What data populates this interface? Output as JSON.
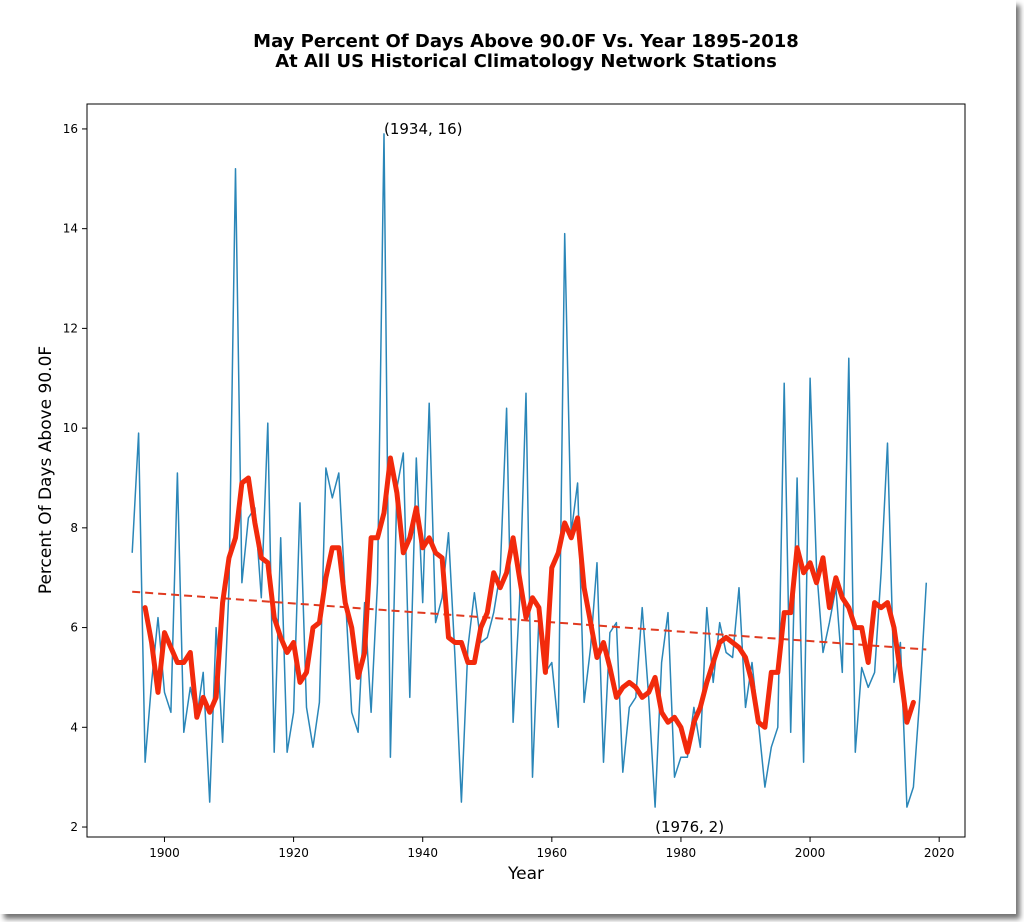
{
  "chart_data": {
    "type": "line",
    "title": "May Percent Of Days Above 90.0F Vs. Year 1895-2018",
    "subtitle": "At All US Historical Climatology Network Stations",
    "xlabel": "Year",
    "ylabel": "Percent Of Days Above 90.0F",
    "xlim": [
      1888,
      2024
    ],
    "ylim": [
      1.8,
      16.5
    ],
    "xticks": [
      1900,
      1920,
      1940,
      1960,
      1980,
      2000,
      2020
    ],
    "yticks": [
      2,
      4,
      6,
      8,
      10,
      12,
      14,
      16
    ],
    "grid": false,
    "colors": {
      "series": "#2a86b8",
      "smooth": "#f22a0c",
      "trend": "#e03a20"
    },
    "series": [
      {
        "style": "thin-line",
        "x": [
          1895,
          1896,
          1897,
          1898,
          1899,
          1900,
          1901,
          1902,
          1903,
          1904,
          1905,
          1906,
          1907,
          1908,
          1909,
          1910,
          1911,
          1912,
          1913,
          1914,
          1915,
          1916,
          1917,
          1918,
          1919,
          1920,
          1921,
          1922,
          1923,
          1924,
          1925,
          1926,
          1927,
          1928,
          1929,
          1930,
          1931,
          1932,
          1933,
          1934,
          1935,
          1936,
          1937,
          1938,
          1939,
          1940,
          1941,
          1942,
          1943,
          1944,
          1945,
          1946,
          1947,
          1948,
          1949,
          1950,
          1951,
          1952,
          1953,
          1954,
          1955,
          1956,
          1957,
          1958,
          1959,
          1960,
          1961,
          1962,
          1963,
          1964,
          1965,
          1966,
          1967,
          1968,
          1969,
          1970,
          1971,
          1972,
          1973,
          1974,
          1975,
          1976,
          1977,
          1978,
          1979,
          1980,
          1981,
          1982,
          1983,
          1984,
          1985,
          1986,
          1987,
          1988,
          1989,
          1990,
          1991,
          1992,
          1993,
          1994,
          1995,
          1996,
          1997,
          1998,
          1999,
          2000,
          2001,
          2002,
          2003,
          2004,
          2005,
          2006,
          2007,
          2008,
          2009,
          2010,
          2011,
          2012,
          2013,
          2014,
          2015,
          2016,
          2017,
          2018
        ],
        "values": [
          7.5,
          9.9,
          3.3,
          4.9,
          6.2,
          4.7,
          4.3,
          9.1,
          3.9,
          4.8,
          4.2,
          5.1,
          2.5,
          6.0,
          3.7,
          6.8,
          15.2,
          6.9,
          8.2,
          8.4,
          6.6,
          10.1,
          3.5,
          7.8,
          3.5,
          4.3,
          8.5,
          4.4,
          3.6,
          4.5,
          9.2,
          8.6,
          9.1,
          6.7,
          4.3,
          3.9,
          6.5,
          4.3,
          6.9,
          15.9,
          3.4,
          8.8,
          9.5,
          4.6,
          9.4,
          6.5,
          10.5,
          6.1,
          6.6,
          7.9,
          5.4,
          2.5,
          5.6,
          6.7,
          5.7,
          5.8,
          6.3,
          7.1,
          10.4,
          4.1,
          6.5,
          10.7,
          3.0,
          6.2,
          5.1,
          5.3,
          4.0,
          13.9,
          7.9,
          8.9,
          4.5,
          5.6,
          7.3,
          3.3,
          5.9,
          6.1,
          3.1,
          4.4,
          4.6,
          6.4,
          4.6,
          2.4,
          5.3,
          6.3,
          3.0,
          3.4,
          3.4,
          4.4,
          3.6,
          6.4,
          4.9,
          6.1,
          5.5,
          5.4,
          6.8,
          4.4,
          5.3,
          4.1,
          2.8,
          3.6,
          4.0,
          10.9,
          3.9,
          9.0,
          3.3,
          11.0,
          7.2,
          5.5,
          6.1,
          6.8,
          5.1,
          11.4,
          3.5,
          5.2,
          4.8,
          5.1,
          7.1,
          9.7,
          4.9,
          5.7,
          2.4,
          2.8,
          4.6,
          6.9
        ]
      },
      {
        "style": "thick-smoothed",
        "x": [
          1897,
          1898,
          1899,
          1900,
          1901,
          1902,
          1903,
          1904,
          1905,
          1906,
          1907,
          1908,
          1909,
          1910,
          1911,
          1912,
          1913,
          1914,
          1915,
          1916,
          1917,
          1918,
          1919,
          1920,
          1921,
          1922,
          1923,
          1924,
          1925,
          1926,
          1927,
          1928,
          1929,
          1930,
          1931,
          1932,
          1933,
          1934,
          1935,
          1936,
          1937,
          1938,
          1939,
          1940,
          1941,
          1942,
          1943,
          1944,
          1945,
          1946,
          1947,
          1948,
          1949,
          1950,
          1951,
          1952,
          1953,
          1954,
          1955,
          1956,
          1957,
          1958,
          1959,
          1960,
          1961,
          1962,
          1963,
          1964,
          1965,
          1966,
          1967,
          1968,
          1969,
          1970,
          1971,
          1972,
          1973,
          1974,
          1975,
          1976,
          1977,
          1978,
          1979,
          1980,
          1981,
          1982,
          1983,
          1984,
          1985,
          1986,
          1987,
          1988,
          1989,
          1990,
          1991,
          1992,
          1993,
          1994,
          1995,
          1996,
          1997,
          1998,
          1999,
          2000,
          2001,
          2002,
          2003,
          2004,
          2005,
          2006,
          2007,
          2008,
          2009,
          2010,
          2011,
          2012,
          2013,
          2014,
          2015,
          2016
        ],
        "values": [
          6.4,
          5.7,
          4.7,
          5.9,
          5.6,
          5.3,
          5.3,
          5.5,
          4.2,
          4.6,
          4.3,
          4.6,
          6.5,
          7.4,
          7.8,
          8.9,
          9.0,
          8.1,
          7.4,
          7.3,
          6.2,
          5.8,
          5.5,
          5.7,
          4.9,
          5.1,
          6.0,
          6.1,
          7.0,
          7.6,
          7.6,
          6.5,
          6.0,
          5.0,
          5.5,
          7.8,
          7.8,
          8.3,
          9.4,
          8.7,
          7.5,
          7.8,
          8.4,
          7.6,
          7.8,
          7.5,
          7.4,
          5.8,
          5.7,
          5.7,
          5.3,
          5.3,
          6.0,
          6.3,
          7.1,
          6.8,
          7.1,
          7.8,
          7.0,
          6.2,
          6.6,
          6.4,
          5.1,
          7.2,
          7.5,
          8.1,
          7.8,
          8.2,
          6.8,
          6.1,
          5.4,
          5.7,
          5.2,
          4.6,
          4.8,
          4.9,
          4.8,
          4.6,
          4.7,
          5.0,
          4.3,
          4.1,
          4.2,
          4.0,
          3.5,
          4.1,
          4.4,
          4.9,
          5.3,
          5.7,
          5.8,
          5.7,
          5.6,
          5.4,
          4.9,
          4.1,
          4.0,
          5.1,
          5.1,
          6.3,
          6.3,
          7.6,
          7.1,
          7.3,
          6.9,
          7.4,
          6.4,
          7.0,
          6.6,
          6.4,
          6.0,
          6.0,
          5.3,
          6.5,
          6.4,
          6.5,
          6.0,
          5.1,
          4.1,
          4.5
        ]
      },
      {
        "style": "dashed-trend",
        "x": [
          1895,
          2018
        ],
        "values": [
          6.72,
          5.56
        ]
      }
    ],
    "annotations": [
      {
        "text": "(1934, 16)",
        "x": 1934,
        "y": 16
      },
      {
        "text": "(1976, 2)",
        "x": 1976,
        "y": 2
      }
    ]
  }
}
